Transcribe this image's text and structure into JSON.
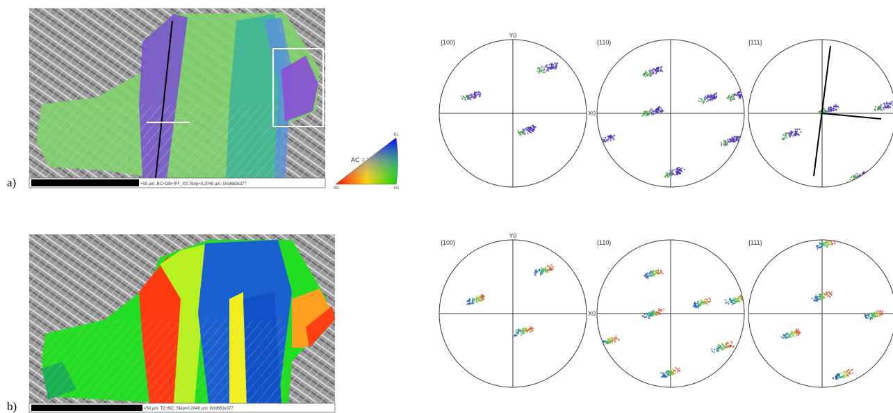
{
  "panels": [
    {
      "label": "a)",
      "caption": "=50 µm; BC+GB+IPF_X0; Step=0.2048 µm; Grid663x377",
      "pole_figures": [
        {
          "label": "{100}"
        },
        {
          "label": "{110}"
        },
        {
          "label": "{111}"
        }
      ],
      "y_axis_label": "Y0",
      "x_axis_label": "X0"
    },
    {
      "label": "b)",
      "caption": "=50 µm; TC+BC; Step=0.2048 µm; Grid663x377",
      "pole_figures": [
        {
          "label": "{100}"
        },
        {
          "label": "{110}"
        },
        {
          "label": "{111}"
        }
      ],
      "y_axis_label": "Y0",
      "x_axis_label": "X0"
    }
  ],
  "color_key": {
    "title": "AC = X0",
    "top": "111",
    "left": "001",
    "right": "101"
  }
}
